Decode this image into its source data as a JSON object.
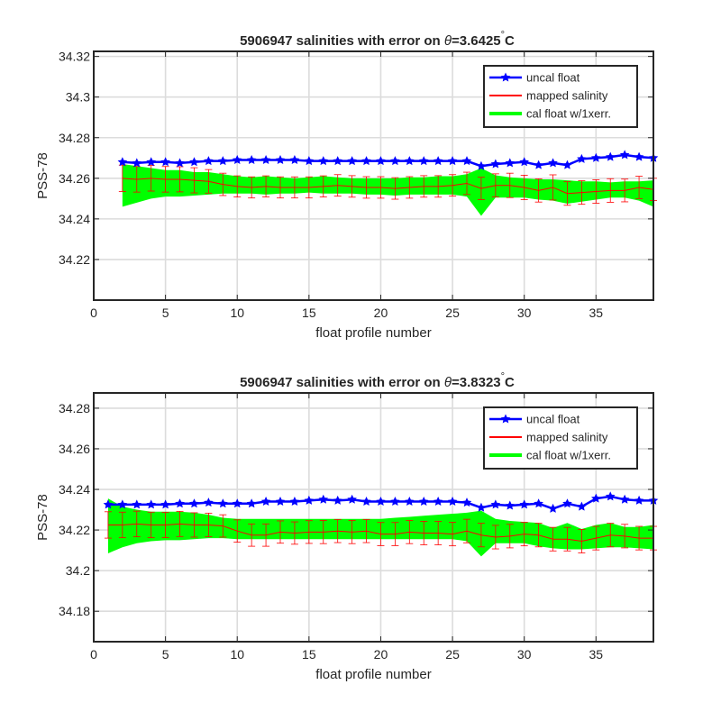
{
  "chart_data": [
    {
      "type": "line",
      "title_prefix": "5906947 salinities with error on ",
      "title_theta": "θ",
      "title_value": "=3.6425",
      "title_degree": "°",
      "title_unit": "C",
      "xlabel": "float profile number",
      "ylabel": "PSS-78",
      "xlim": [
        0,
        39
      ],
      "ylim": [
        34.2,
        34.3225
      ],
      "xticks": [
        "0",
        "5",
        "10",
        "15",
        "20",
        "25",
        "30",
        "35"
      ],
      "xtick_values": [
        0,
        5,
        10,
        15,
        20,
        25,
        30,
        35
      ],
      "yticks": [
        "34.22",
        "34.24",
        "34.26",
        "34.28",
        "34.3",
        "34.32"
      ],
      "ytick_values": [
        34.22,
        34.24,
        34.26,
        34.28,
        34.3,
        34.32
      ],
      "grid": true,
      "legend_position": "top-right",
      "legend": [
        "uncal float",
        "mapped salinity",
        "cal float w/1xerr."
      ],
      "colors": {
        "uncal": "#0000ff",
        "mapped": "#ff0000",
        "cal": "#00ff00"
      },
      "x": [
        2,
        3,
        4,
        5,
        6,
        7,
        8,
        9,
        10,
        11,
        12,
        13,
        14,
        15,
        16,
        17,
        18,
        19,
        20,
        21,
        22,
        23,
        24,
        25,
        26,
        27,
        28,
        29,
        30,
        31,
        32,
        33,
        34,
        35,
        36,
        37,
        38,
        39
      ],
      "series": [
        {
          "name": "uncal float",
          "values": [
            34.268,
            34.2675,
            34.268,
            34.268,
            34.2675,
            34.268,
            34.2685,
            34.2685,
            34.269,
            34.269,
            34.269,
            34.269,
            34.269,
            34.2685,
            34.2685,
            34.2685,
            34.2685,
            34.2685,
            34.2685,
            34.2685,
            34.2685,
            34.2685,
            34.2685,
            34.2685,
            34.2685,
            34.266,
            34.267,
            34.2675,
            34.268,
            34.2665,
            34.2675,
            34.2665,
            34.2695,
            34.27,
            34.2705,
            34.2715,
            34.2705,
            34.27
          ]
        },
        {
          "name": "mapped salinity",
          "values": [
            34.26,
            34.2595,
            34.26,
            34.2595,
            34.2595,
            34.259,
            34.2585,
            34.257,
            34.256,
            34.2555,
            34.256,
            34.2555,
            34.2555,
            34.2555,
            34.256,
            34.2565,
            34.256,
            34.2555,
            34.2555,
            34.255,
            34.2555,
            34.256,
            34.256,
            34.2565,
            34.2575,
            34.255,
            34.2565,
            34.2565,
            34.2555,
            34.254,
            34.2555,
            34.2525,
            34.253,
            34.2535,
            34.254,
            34.254,
            34.2555,
            34.2545
          ]
        },
        {
          "name": "error",
          "values": [
            0.0065,
            0.0063,
            0.0063,
            0.0063,
            0.0062,
            0.0062,
            0.0058,
            0.0055,
            0.0052,
            0.0052,
            0.0052,
            0.0052,
            0.0052,
            0.0052,
            0.0052,
            0.0053,
            0.0053,
            0.0053,
            0.0053,
            0.0053,
            0.0053,
            0.0053,
            0.0053,
            0.0053,
            0.0055,
            0.0055,
            0.0057,
            0.006,
            0.006,
            0.0057,
            0.0062,
            0.0058,
            0.0058,
            0.0058,
            0.0058,
            0.0056,
            0.0055,
            0.0055
          ]
        },
        {
          "name": "cal float w/1xerr.",
          "upper": [
            34.267,
            34.266,
            34.265,
            34.264,
            34.264,
            34.263,
            34.263,
            34.262,
            34.261,
            34.2605,
            34.261,
            34.2605,
            34.26,
            34.2605,
            34.261,
            34.2605,
            34.26,
            34.26,
            34.26,
            34.26,
            34.2605,
            34.2605,
            34.261,
            34.261,
            34.262,
            34.265,
            34.2615,
            34.2605,
            34.26,
            34.2595,
            34.2595,
            34.259,
            34.2585,
            34.2585,
            34.258,
            34.2585,
            34.2585,
            34.259
          ],
          "lower": [
            34.246,
            34.248,
            34.25,
            34.251,
            34.251,
            34.2515,
            34.252,
            34.2525,
            34.2525,
            34.2525,
            34.252,
            34.2525,
            34.2525,
            34.253,
            34.2525,
            34.2525,
            34.2525,
            34.252,
            34.252,
            34.2515,
            34.252,
            34.252,
            34.252,
            34.252,
            34.251,
            34.2415,
            34.2505,
            34.2505,
            34.2505,
            34.2495,
            34.249,
            34.2475,
            34.2485,
            34.2495,
            34.2505,
            34.2505,
            34.249,
            34.246
          ]
        }
      ]
    },
    {
      "type": "line",
      "title_prefix": "5906947 salinities with error on ",
      "title_theta": "θ",
      "title_value": "=3.8323",
      "title_degree": "°",
      "title_unit": "C",
      "xlabel": "float profile number",
      "ylabel": "PSS-78",
      "xlim": [
        0,
        39
      ],
      "ylim": [
        34.165,
        34.2875
      ],
      "xticks": [
        "0",
        "5",
        "10",
        "15",
        "20",
        "25",
        "30",
        "35"
      ],
      "xtick_values": [
        0,
        5,
        10,
        15,
        20,
        25,
        30,
        35
      ],
      "yticks": [
        "34.18",
        "34.2",
        "34.22",
        "34.24",
        "34.26",
        "34.28"
      ],
      "ytick_values": [
        34.18,
        34.2,
        34.22,
        34.24,
        34.26,
        34.28
      ],
      "grid": true,
      "legend_position": "top-right",
      "legend": [
        "uncal float",
        "mapped salinity",
        "cal float w/1xerr."
      ],
      "colors": {
        "uncal": "#0000ff",
        "mapped": "#ff0000",
        "cal": "#00ff00"
      },
      "x": [
        1,
        2,
        3,
        4,
        5,
        6,
        7,
        8,
        9,
        10,
        11,
        12,
        13,
        14,
        15,
        16,
        17,
        18,
        19,
        20,
        21,
        22,
        23,
        24,
        25,
        26,
        27,
        28,
        29,
        30,
        31,
        32,
        33,
        34,
        35,
        36,
        37,
        38,
        39
      ],
      "series": [
        {
          "name": "uncal float",
          "values": [
            34.2325,
            34.2325,
            34.2325,
            34.2325,
            34.2325,
            34.233,
            34.233,
            34.2335,
            34.233,
            34.233,
            34.233,
            34.234,
            34.234,
            34.234,
            34.2345,
            34.235,
            34.2345,
            34.235,
            34.234,
            34.234,
            34.234,
            34.234,
            34.234,
            34.234,
            34.234,
            34.2335,
            34.231,
            34.2325,
            34.232,
            34.2325,
            34.233,
            34.2305,
            34.233,
            34.2315,
            34.2355,
            34.2365,
            34.235,
            34.2345,
            34.2345
          ]
        },
        {
          "name": "mapped salinity",
          "values": [
            34.2225,
            34.2225,
            34.223,
            34.2225,
            34.2225,
            34.223,
            34.2225,
            34.2225,
            34.222,
            34.2195,
            34.2175,
            34.2175,
            34.219,
            34.2185,
            34.219,
            34.219,
            34.2195,
            34.219,
            34.2195,
            34.218,
            34.218,
            34.219,
            34.2185,
            34.2185,
            34.218,
            34.2195,
            34.2175,
            34.2165,
            34.217,
            34.218,
            34.2175,
            34.2155,
            34.2155,
            34.2145,
            34.216,
            34.2175,
            34.217,
            34.216,
            34.216
          ]
        },
        {
          "name": "error",
          "values": [
            0.0065,
            0.0063,
            0.0063,
            0.0063,
            0.0062,
            0.0062,
            0.006,
            0.0058,
            0.0055,
            0.0055,
            0.0055,
            0.0055,
            0.0055,
            0.0055,
            0.0056,
            0.0057,
            0.0057,
            0.0057,
            0.0057,
            0.0057,
            0.0057,
            0.0057,
            0.0058,
            0.0058,
            0.0058,
            0.0058,
            0.0058,
            0.0058,
            0.0058,
            0.0058,
            0.0058,
            0.0058,
            0.0058,
            0.0058,
            0.0058,
            0.0058,
            0.0058,
            0.0058,
            0.0058
          ]
        },
        {
          "name": "cal float w/1xerr.",
          "upper": [
            34.2355,
            34.2315,
            34.23,
            34.229,
            34.229,
            34.229,
            34.2285,
            34.2275,
            34.226,
            34.2255,
            34.2255,
            34.2255,
            34.2255,
            34.2255,
            34.2255,
            34.2255,
            34.2255,
            34.2255,
            34.2255,
            34.2255,
            34.226,
            34.2265,
            34.227,
            34.2275,
            34.228,
            34.2285,
            34.2295,
            34.2255,
            34.2245,
            34.224,
            34.2235,
            34.221,
            34.2235,
            34.2205,
            34.2225,
            34.2235,
            34.2215,
            34.2215,
            34.2225
          ],
          "lower": [
            34.2085,
            34.2115,
            34.2135,
            34.2145,
            34.215,
            34.215,
            34.2155,
            34.216,
            34.216,
            34.2155,
            34.2155,
            34.2155,
            34.2155,
            34.2155,
            34.2155,
            34.2155,
            34.2155,
            34.2155,
            34.2155,
            34.2155,
            34.2155,
            34.2155,
            34.2155,
            34.2155,
            34.2155,
            34.2145,
            34.207,
            34.2135,
            34.2135,
            34.2135,
            34.212,
            34.211,
            34.2105,
            34.2105,
            34.211,
            34.2115,
            34.2115,
            34.211,
            34.2105
          ]
        }
      ]
    }
  ]
}
